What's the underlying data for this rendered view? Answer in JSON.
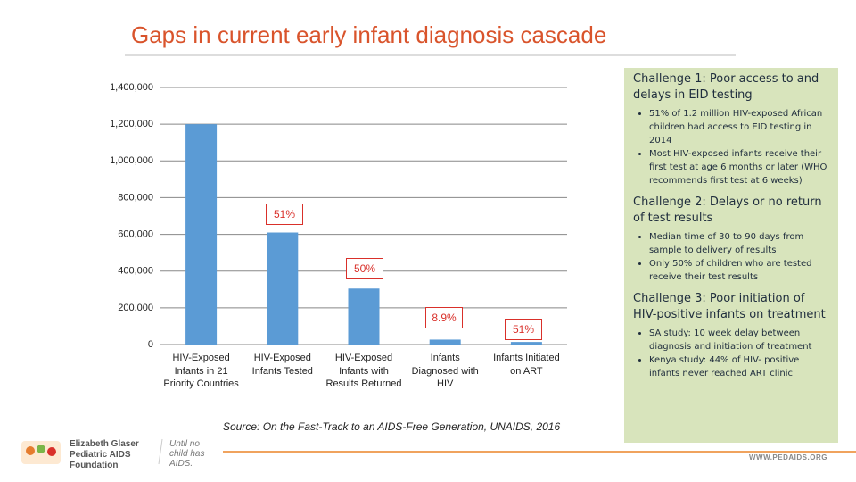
{
  "title": "Gaps in current early infant diagnosis cascade",
  "chart_data": {
    "type": "bar",
    "categories": [
      "HIV-Exposed Infants in 21 Priority Countries",
      "HIV-Exposed Infants Tested",
      "HIV-Exposed Infants with Results Returned",
      "Infants Diagnosed with HIV",
      "Infants Initiated on ART"
    ],
    "values": [
      1200000,
      610000,
      305000,
      27000,
      14000
    ],
    "color": "#5b9bd5",
    "annotations": [
      "51%",
      "50%",
      "8.9%",
      "51%"
    ],
    "ylim": [
      0,
      1400000
    ],
    "yticks": [
      0,
      {
        "value": 200000,
        "label": "200,000"
      },
      {
        "value": 400000,
        "label": "400,000"
      },
      {
        "value": 600000,
        "label": "600,000"
      },
      {
        "value": 800000,
        "label": "800,000"
      },
      {
        "value": 1000000,
        "label": "1,000,000"
      },
      {
        "value": 1200000,
        "label": "1,200,000"
      },
      {
        "value": 1400000,
        "label": "1,400,000"
      }
    ],
    "grid": true
  },
  "source": "Source: On the Fast-Track to an AIDS-Free Generation, UNAIDS, 2016",
  "panel": {
    "sections": [
      {
        "heading": "Challenge 1: Poor access to and delays in EID testing",
        "bullets": [
          "51% of 1.2 million HIV-exposed African children had access to EID testing in 2014",
          "Most HIV-exposed infants receive their first test at age 6 months or later (WHO recommends first test at 6 weeks)"
        ]
      },
      {
        "heading": "Challenge 2: Delays or no return of test results",
        "bullets": [
          "Median time of 30 to 90 days from sample to delivery of results",
          "Only 50% of children who are tested receive their test results"
        ]
      },
      {
        "heading": "Challenge 3: Poor initiation of HIV-positive infants on treatment",
        "bullets": [
          "SA study: 10 week delay between diagnosis and initiation of treatment",
          "Kenya study: 44% of HIV- positive infants never reached ART clinic"
        ]
      }
    ]
  },
  "footer": {
    "org": "Elizabeth Glaser Pediatric AIDS Foundation",
    "tagline": "Until no child has AIDS.",
    "url": "WWW.PEDAIDS.ORG"
  }
}
